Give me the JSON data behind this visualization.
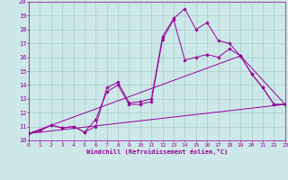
{
  "xlabel": "Windchill (Refroidissement éolien,°C)",
  "bg_color": "#cce8e8",
  "line_color": "#990099",
  "grid_color": "#aacccc",
  "xlim": [
    0,
    23
  ],
  "ylim": [
    10,
    20
  ],
  "xticks": [
    0,
    1,
    2,
    3,
    4,
    5,
    6,
    7,
    8,
    9,
    10,
    11,
    12,
    13,
    14,
    15,
    16,
    17,
    18,
    19,
    20,
    21,
    22,
    23
  ],
  "yticks": [
    10,
    11,
    12,
    13,
    14,
    15,
    16,
    17,
    18,
    19,
    20
  ],
  "series1_x": [
    0,
    1,
    2,
    3,
    4,
    5,
    6,
    7,
    8,
    9,
    10,
    11,
    12,
    13,
    14,
    15,
    16,
    17,
    18,
    19,
    20,
    21,
    22,
    23
  ],
  "series1_y": [
    10.5,
    10.7,
    11.1,
    10.9,
    11.0,
    10.6,
    11.0,
    13.8,
    14.2,
    12.7,
    12.8,
    13.0,
    17.5,
    18.8,
    19.5,
    18.0,
    18.5,
    17.2,
    17.0,
    16.1,
    14.8,
    13.8,
    12.6,
    12.6
  ],
  "series2_x": [
    0,
    1,
    2,
    3,
    4,
    5,
    6,
    7,
    8,
    9,
    10,
    11,
    12,
    13,
    14,
    15,
    16,
    17,
    18,
    19,
    20,
    21,
    22,
    23
  ],
  "series2_y": [
    10.5,
    10.7,
    11.1,
    10.9,
    11.0,
    10.6,
    11.5,
    13.5,
    14.0,
    12.6,
    12.6,
    12.8,
    17.3,
    18.7,
    15.8,
    16.0,
    16.2,
    16.0,
    16.6,
    16.1,
    14.8,
    13.8,
    12.6,
    12.6
  ],
  "series3_x": [
    0,
    23
  ],
  "series3_y": [
    10.5,
    12.6
  ],
  "series4_x": [
    0,
    19,
    23
  ],
  "series4_y": [
    10.5,
    16.1,
    12.6
  ]
}
